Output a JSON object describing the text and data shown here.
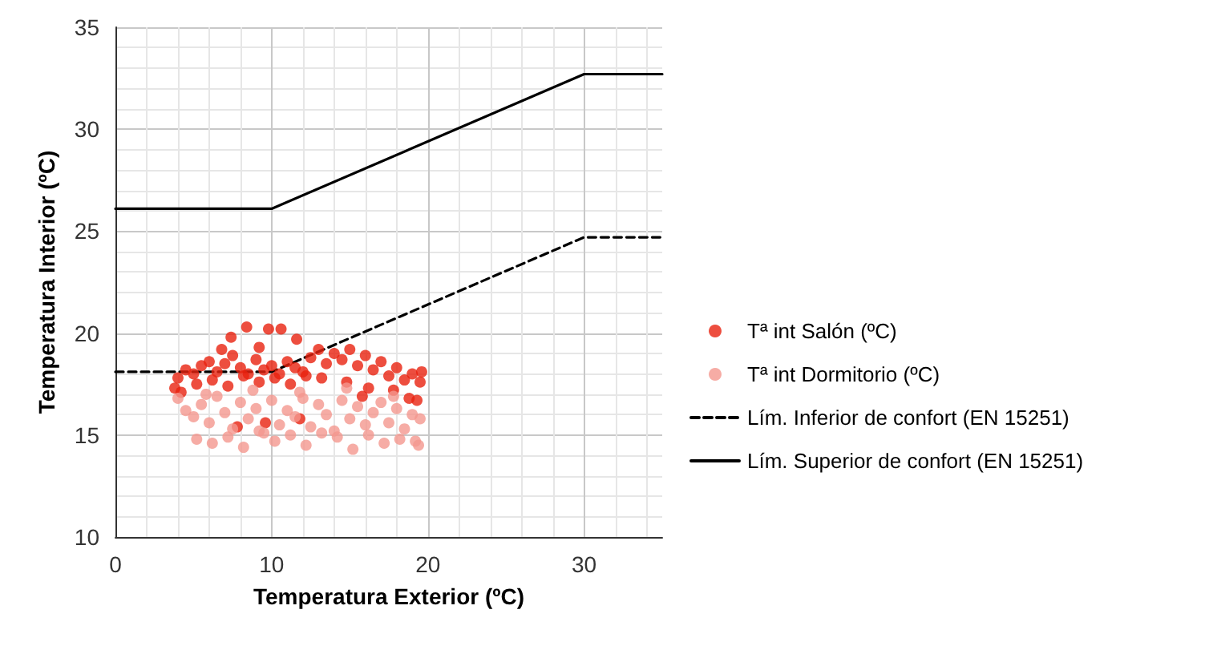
{
  "chart_data": {
    "type": "scatter",
    "xlabel": "Temperatura Exterior (ºC)",
    "ylabel": "Temperatura Interior (ºC)",
    "xlim": [
      0,
      35
    ],
    "xticks": [
      0,
      10,
      20,
      30
    ],
    "ylim": [
      10,
      35
    ],
    "yticks": [
      10,
      15,
      20,
      25,
      30,
      35
    ],
    "grid": true,
    "legend": "right",
    "series": [
      {
        "name": "Tª int Salón (ºC)",
        "marker": "circle",
        "color": "#e8220f",
        "x": [
          8.4,
          9.8,
          10.6,
          11.6,
          7.4,
          9.2,
          6.8,
          4.0,
          4.5,
          5.0,
          5.5,
          6.0,
          6.5,
          7.0,
          7.5,
          8.0,
          8.5,
          9.0,
          9.5,
          10.0,
          10.5,
          11.0,
          11.5,
          12.0,
          3.8,
          4.2,
          5.2,
          6.2,
          7.2,
          8.2,
          9.2,
          10.2,
          11.2,
          12.5,
          13.0,
          13.5,
          14.0,
          14.5,
          15.0,
          15.5,
          16.0,
          16.5,
          17.0,
          17.5,
          18.0,
          18.5,
          19.0,
          19.5,
          19.3,
          13.2,
          14.8,
          16.2,
          17.8,
          19.6,
          12.2,
          15.8,
          18.8,
          7.8,
          9.6,
          11.8
        ],
        "values": [
          20.3,
          20.2,
          20.2,
          19.7,
          19.8,
          19.3,
          19.2,
          17.8,
          18.2,
          18.0,
          18.4,
          18.6,
          18.1,
          18.5,
          18.9,
          18.3,
          18.0,
          18.7,
          18.2,
          18.4,
          18.0,
          18.6,
          18.3,
          18.1,
          17.3,
          17.1,
          17.5,
          17.7,
          17.4,
          17.9,
          17.6,
          17.8,
          17.5,
          18.8,
          19.2,
          18.5,
          19.0,
          18.7,
          19.2,
          18.4,
          18.9,
          18.2,
          18.6,
          17.9,
          18.3,
          17.7,
          18.0,
          17.6,
          16.7,
          17.8,
          17.6,
          17.3,
          17.2,
          18.1,
          17.9,
          16.9,
          16.8,
          15.4,
          15.6,
          15.8
        ]
      },
      {
        "name": "Tª int Dormitorio (ºC)",
        "marker": "circle",
        "color": "#f4978e",
        "x": [
          4.0,
          4.5,
          5.0,
          5.5,
          6.0,
          6.5,
          7.0,
          7.5,
          8.0,
          8.5,
          9.0,
          9.5,
          10.0,
          10.5,
          11.0,
          11.5,
          12.0,
          12.5,
          13.0,
          13.5,
          14.0,
          14.5,
          15.0,
          15.5,
          16.0,
          16.5,
          17.0,
          17.5,
          18.0,
          18.5,
          19.0,
          19.5,
          5.2,
          6.2,
          7.2,
          8.2,
          9.2,
          10.2,
          11.2,
          12.2,
          13.2,
          14.2,
          15.2,
          16.2,
          17.2,
          18.2,
          19.2,
          5.8,
          8.8,
          11.8,
          14.8,
          17.8,
          19.4
        ],
        "values": [
          16.8,
          16.2,
          15.9,
          16.5,
          15.6,
          16.9,
          16.1,
          15.3,
          16.6,
          15.8,
          16.3,
          15.1,
          16.7,
          15.5,
          16.2,
          15.9,
          16.8,
          15.4,
          16.5,
          16.0,
          15.2,
          16.7,
          15.8,
          16.4,
          15.5,
          16.1,
          16.6,
          15.6,
          16.3,
          15.3,
          16.0,
          15.8,
          14.8,
          14.6,
          14.9,
          14.4,
          15.2,
          14.7,
          15.0,
          14.5,
          15.1,
          14.9,
          14.3,
          15.0,
          14.6,
          14.8,
          14.7,
          17.0,
          17.2,
          17.1,
          17.3,
          16.9,
          14.5
        ]
      },
      {
        "name": "Lím. Inferior de confort (EN 15251)",
        "type": "line",
        "marker": "none",
        "line_style": "dashed",
        "color": "#000000",
        "x": [
          0,
          10,
          30,
          35
        ],
        "values": [
          18.1,
          18.1,
          24.7,
          24.7
        ]
      },
      {
        "name": "Lím. Superior de confort (EN 15251)",
        "type": "line",
        "marker": "none",
        "line_style": "solid",
        "color": "#000000",
        "x": [
          0,
          10,
          30,
          35
        ],
        "values": [
          26.1,
          26.1,
          32.7,
          32.7
        ]
      }
    ]
  }
}
